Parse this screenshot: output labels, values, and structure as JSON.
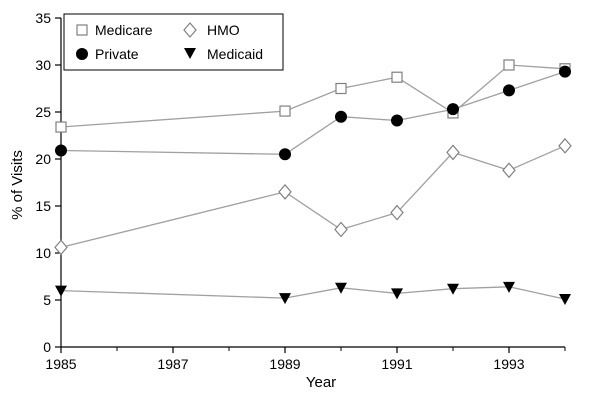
{
  "chart_data": {
    "type": "line",
    "xlabel": "Year",
    "ylabel": "% of Visits",
    "xlim": [
      1985,
      1994
    ],
    "ylim": [
      0,
      35
    ],
    "x_ticks": [
      "1985",
      "1987",
      "1989",
      "1991",
      "1993"
    ],
    "y_ticks": [
      "0",
      "5",
      "10",
      "15",
      "20",
      "25",
      "30",
      "35"
    ],
    "grid": false,
    "legend_position": "top-left",
    "series": [
      {
        "name": "Medicare",
        "marker": "square-open",
        "points": [
          [
            1985,
            23.4
          ],
          [
            1989,
            25.1
          ],
          [
            1990,
            27.5
          ],
          [
            1991,
            28.7
          ],
          [
            1992,
            24.9
          ],
          [
            1993,
            30.0
          ],
          [
            1994,
            29.6
          ]
        ]
      },
      {
        "name": "HMO",
        "marker": "diamond-open",
        "points": [
          [
            1985,
            10.6
          ],
          [
            1989,
            16.5
          ],
          [
            1990,
            12.5
          ],
          [
            1991,
            14.3
          ],
          [
            1992,
            20.7
          ],
          [
            1993,
            18.8
          ],
          [
            1994,
            21.4
          ]
        ]
      },
      {
        "name": "Private",
        "marker": "circle-filled",
        "points": [
          [
            1985,
            20.9
          ],
          [
            1989,
            20.5
          ],
          [
            1990,
            24.5
          ],
          [
            1991,
            24.1
          ],
          [
            1992,
            25.3
          ],
          [
            1993,
            27.3
          ],
          [
            1994,
            29.3
          ]
        ]
      },
      {
        "name": "Medicaid",
        "marker": "triangle-down-filled",
        "points": [
          [
            1985,
            6.0
          ],
          [
            1989,
            5.2
          ],
          [
            1990,
            6.3
          ],
          [
            1991,
            5.7
          ],
          [
            1992,
            6.2
          ],
          [
            1993,
            6.4
          ],
          [
            1994,
            5.1
          ]
        ]
      }
    ]
  },
  "colors": {
    "line": "#a0a0a0",
    "marker_fill_filled": "#000000",
    "marker_fill_open": "#ffffff",
    "marker_stroke_open": "#808080",
    "axis": "#000000"
  }
}
